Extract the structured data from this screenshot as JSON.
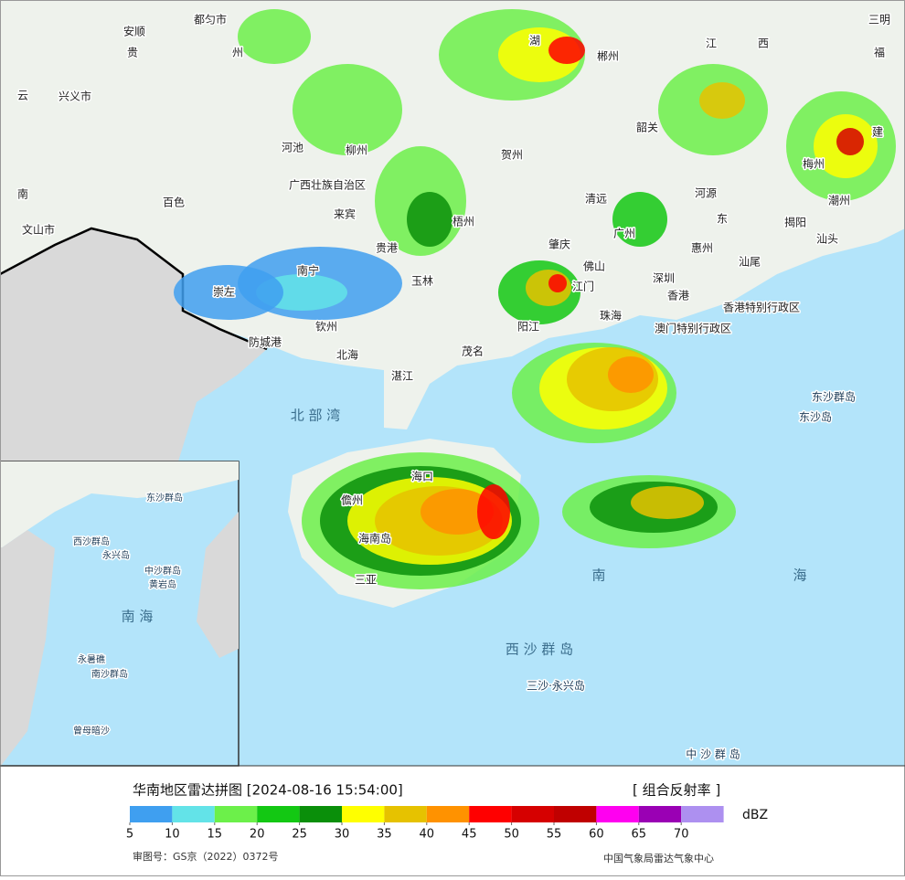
{
  "map": {
    "labels": [
      "都匀市",
      "安顺",
      "贵",
      "州",
      "云",
      "兴义市",
      "湖",
      "郴州",
      "江",
      "西",
      "三明",
      "福",
      "建",
      "河池",
      "柳州",
      "韶关",
      "贺州",
      "梅州",
      "南",
      "百色",
      "广西壮族自治区",
      "清远",
      "河源",
      "潮州",
      "来宾",
      "梧州",
      "广州",
      "东",
      "揭阳",
      "文山市",
      "贵港",
      "肇庆",
      "惠州",
      "汕头",
      "南宁",
      "玉林",
      "佛山",
      "汕尾",
      "深圳",
      "江门",
      "香港",
      "香港特别行政区",
      "崇左",
      "澳门特别行政区",
      "珠海",
      "钦州",
      "阳江",
      "防城港",
      "北海",
      "茂名",
      "湛江",
      "东沙群岛",
      "东沙岛",
      "北 部 湾",
      "海口",
      "儋州",
      "海南岛",
      "三亚",
      "南",
      "海",
      "西 沙 群 岛",
      "三沙·永兴岛",
      "中 沙 群 岛"
    ],
    "inset_labels": [
      "东沙群岛",
      "西沙群岛",
      "永兴岛",
      "中沙群岛",
      "黄岩岛",
      "南 海",
      "永暑礁",
      "南沙群岛",
      "曾母暗沙"
    ]
  },
  "legend": {
    "title": "华南地区雷达拼图 [2024-08-16 15:54:00]",
    "product": "[ 组合反射率 ]",
    "unit": "dBZ",
    "colors": [
      "#3f9ff0",
      "#63e3e8",
      "#6cf04a",
      "#13c813",
      "#0a8f0a",
      "#ffff00",
      "#e6c200",
      "#ff9200",
      "#ff0000",
      "#d60000",
      "#c00000",
      "#ff00f0",
      "#9a00b4",
      "#ad90f0"
    ],
    "ticks": [
      5,
      10,
      15,
      20,
      25,
      30,
      35,
      40,
      45,
      50,
      55,
      60,
      65,
      70
    ],
    "approval": "审图号：GS京（2022）0372号",
    "credit": "中国气象局雷达气象中心"
  }
}
